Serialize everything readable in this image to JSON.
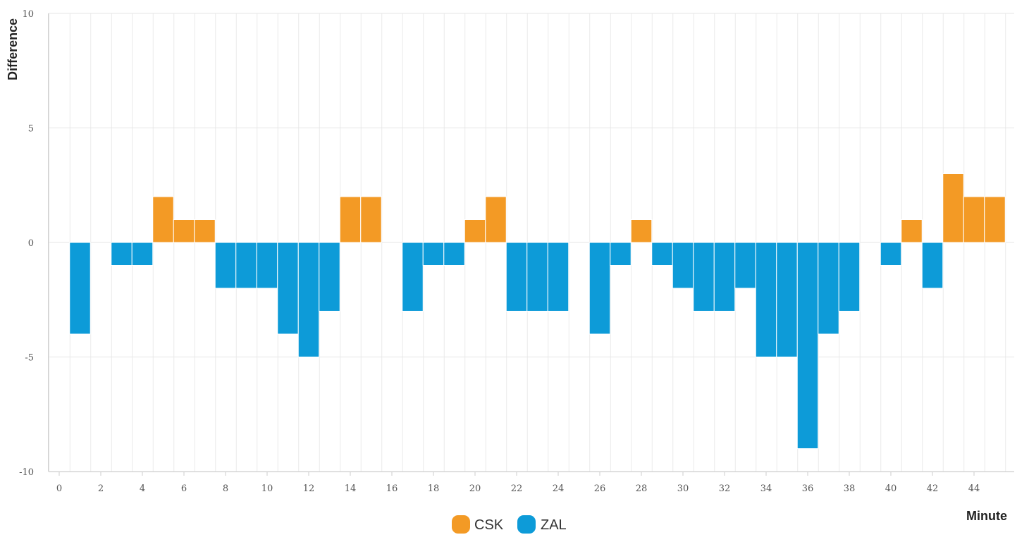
{
  "chart_data": {
    "type": "bar",
    "xlabel": "Minute",
    "ylabel": "Difference",
    "xlim": [
      0,
      46
    ],
    "ylim": [
      -10,
      10
    ],
    "x_ticks": [
      0,
      2,
      4,
      6,
      8,
      10,
      12,
      14,
      16,
      18,
      20,
      22,
      24,
      26,
      28,
      30,
      32,
      34,
      36,
      38,
      40,
      42,
      44
    ],
    "y_ticks": [
      10,
      5,
      0,
      -5,
      -10
    ],
    "grid": true,
    "legend": {
      "position": "bottom-center",
      "items": [
        {
          "name": "CSK",
          "color": "#F39A25"
        },
        {
          "name": "ZAL",
          "color": "#0D9BD8"
        }
      ]
    },
    "colors": {
      "CSK": "#F39A25",
      "ZAL": "#0D9BD8"
    },
    "bars": [
      {
        "minute": 1,
        "value": -4,
        "team": "ZAL"
      },
      {
        "minute": 3,
        "value": -1,
        "team": "ZAL"
      },
      {
        "minute": 4,
        "value": -1,
        "team": "ZAL"
      },
      {
        "minute": 5,
        "value": 2,
        "team": "CSK"
      },
      {
        "minute": 6,
        "value": 1,
        "team": "CSK"
      },
      {
        "minute": 7,
        "value": 1,
        "team": "CSK"
      },
      {
        "minute": 8,
        "value": -2,
        "team": "ZAL"
      },
      {
        "minute": 9,
        "value": -2,
        "team": "ZAL"
      },
      {
        "minute": 10,
        "value": -2,
        "team": "ZAL"
      },
      {
        "minute": 11,
        "value": -4,
        "team": "ZAL"
      },
      {
        "minute": 12,
        "value": -5,
        "team": "ZAL"
      },
      {
        "minute": 13,
        "value": -3,
        "team": "ZAL"
      },
      {
        "minute": 14,
        "value": 2,
        "team": "CSK"
      },
      {
        "minute": 15,
        "value": 2,
        "team": "CSK"
      },
      {
        "minute": 17,
        "value": -3,
        "team": "ZAL"
      },
      {
        "minute": 18,
        "value": -1,
        "team": "ZAL"
      },
      {
        "minute": 19,
        "value": -1,
        "team": "ZAL"
      },
      {
        "minute": 20,
        "value": 1,
        "team": "CSK"
      },
      {
        "minute": 21,
        "value": 2,
        "team": "CSK"
      },
      {
        "minute": 22,
        "value": -3,
        "team": "ZAL"
      },
      {
        "minute": 23,
        "value": -3,
        "team": "ZAL"
      },
      {
        "minute": 24,
        "value": -3,
        "team": "ZAL"
      },
      {
        "minute": 26,
        "value": -4,
        "team": "ZAL"
      },
      {
        "minute": 27,
        "value": -1,
        "team": "ZAL"
      },
      {
        "minute": 28,
        "value": 1,
        "team": "CSK"
      },
      {
        "minute": 29,
        "value": -1,
        "team": "ZAL"
      },
      {
        "minute": 30,
        "value": -2,
        "team": "ZAL"
      },
      {
        "minute": 31,
        "value": -3,
        "team": "ZAL"
      },
      {
        "minute": 32,
        "value": -3,
        "team": "ZAL"
      },
      {
        "minute": 33,
        "value": -2,
        "team": "ZAL"
      },
      {
        "minute": 34,
        "value": -5,
        "team": "ZAL"
      },
      {
        "minute": 35,
        "value": -5,
        "team": "ZAL"
      },
      {
        "minute": 36,
        "value": -9,
        "team": "ZAL"
      },
      {
        "minute": 37,
        "value": -4,
        "team": "ZAL"
      },
      {
        "minute": 38,
        "value": -3,
        "team": "ZAL"
      },
      {
        "minute": 40,
        "value": -1,
        "team": "ZAL"
      },
      {
        "minute": 41,
        "value": 1,
        "team": "CSK"
      },
      {
        "minute": 42,
        "value": -2,
        "team": "ZAL"
      },
      {
        "minute": 43,
        "value": 3,
        "team": "CSK"
      },
      {
        "minute": 44,
        "value": 2,
        "team": "CSK"
      },
      {
        "minute": 45,
        "value": 2,
        "team": "CSK"
      }
    ]
  }
}
